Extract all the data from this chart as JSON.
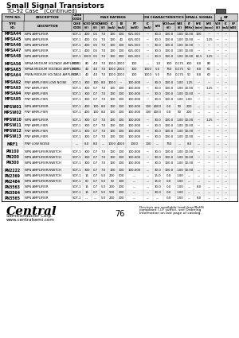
{
  "title": "Small Signal Transistors",
  "subtitle": "TO-92 Case   (Continued)",
  "page_num": "76",
  "bg_color": "#ffffff",
  "rows": [
    [
      "MPSA44",
      "NPN AMPLIFIER",
      "SOT-1",
      "400",
      "0.5",
      "7.0",
      "100",
      "100",
      "625,000",
      "---",
      "30.0",
      "100.0",
      "1.00",
      "10.00",
      "100",
      "---",
      "---",
      "---"
    ],
    [
      "MPSA45",
      "NPN AMPLIFIER",
      "SOT-1",
      "400",
      "0.5",
      "7.0",
      "100",
      "40",
      "625,000",
      "---",
      "30.0",
      "100.0",
      "1.00",
      "10.00",
      "---",
      "1.25",
      "---",
      "---"
    ],
    [
      "MPSA46",
      "NPN AMPLIFIER",
      "SOT-1",
      "400",
      "0.5",
      "7.0",
      "100",
      "100",
      "625,000",
      "---",
      "30.0",
      "100.0",
      "1.00",
      "10.00",
      "---",
      "---",
      "---",
      "---"
    ],
    [
      "MPSA47",
      "NPN AMPLIFIER",
      "SOT-1",
      "400",
      "0.5",
      "7.0",
      "100",
      "100",
      "625,000",
      "---",
      "30.0",
      "100.0",
      "1.00",
      "10.00",
      "---",
      "---",
      "---",
      "---"
    ],
    [
      "MPSA48",
      "NPN AMPLIFIER",
      "SOT-1",
      "1000",
      "0.5",
      "7.0",
      "100",
      "300",
      "625,000",
      "---",
      "30.0",
      "100.0",
      "1.00",
      "10.00",
      "62.5",
      "1.25",
      "---",
      "---"
    ],
    [
      "SEP",
      "",
      "",
      "",
      "",
      "",
      "",
      "",
      "",
      "",
      "",
      "",
      "",
      "",
      "",
      "",
      "",
      ""
    ],
    [
      "MPSA56",
      "NPNA MEDIUM VOLTAGE AMPLIFIER",
      "SOT-1",
      "80",
      "4.0",
      "7.0",
      "1000",
      "2000",
      "100",
      "---",
      "1.0",
      "300",
      "0.175",
      "300",
      "8.0",
      "80",
      "---",
      "---"
    ],
    [
      "MPSA63",
      "NPNA MEDIUM VOLTAGE AMPLIFIER",
      "SOT-1",
      "40",
      "4.0",
      "7.0",
      "1000",
      "2000",
      "100",
      "1000",
      "5.0",
      "750",
      "0.175",
      "50",
      "8.0",
      "60",
      "---",
      "---"
    ],
    [
      "MPSA64",
      "PNPA MEDIUM VOLTAGE AMPLIFIER",
      "SOT-1",
      "40",
      "4.0",
      "7.0",
      "1000",
      "2000",
      "100",
      "1000",
      "5.0",
      "750",
      "0.175",
      "50",
      "8.0",
      "60",
      "---",
      "---"
    ],
    [
      "SEP",
      "",
      "",
      "",
      "",
      "",
      "",
      "",
      "",
      "",
      "",
      "",
      "",
      "",
      "",
      "",
      "",
      ""
    ],
    [
      "MPSA92",
      "PNP AMPLIFIER LOW NOISE",
      "SOT-1",
      "300",
      "100",
      "8.0",
      "1000",
      "---",
      "100,000",
      "---",
      "30.0",
      "100.0",
      "1.00",
      "1.25",
      "---",
      "---",
      "---",
      "---"
    ],
    [
      "MPSA93",
      "PNP AMPLIFIER",
      "SOT-1",
      "300",
      "0.7",
      "7.0",
      "100",
      "100",
      "100,000",
      "---",
      "30.0",
      "100.0",
      "1.00",
      "10.00",
      "---",
      "1.25",
      "---",
      "---"
    ],
    [
      "MPSA94",
      "PNP AMPLIFIER",
      "SOT-1",
      "300",
      "0.7",
      "7.0",
      "100",
      "100",
      "100,000",
      "---",
      "30.0",
      "100.0",
      "1.00",
      "10.00",
      "---",
      "---",
      "---",
      "---"
    ],
    [
      "MPSA95",
      "PNP AMPLIFIER",
      "SOT-1",
      "300",
      "0.7",
      "7.0",
      "100",
      "100",
      "100,000",
      "---",
      "30.0",
      "100.0",
      "1.00",
      "1.00",
      "---",
      "---",
      "---",
      "---"
    ],
    [
      "SEP",
      "",
      "",
      "",
      "",
      "",
      "",
      "",
      "",
      "",
      "",
      "",
      "",
      "",
      "",
      "",
      "",
      ""
    ],
    [
      "MPSW01",
      "NPN AMPLIFIER",
      "SOT-1",
      "400",
      "100",
      "8.0",
      "100",
      "100",
      "100,000",
      "100",
      "4000",
      "0.0",
      "90",
      "200",
      "---",
      "---",
      "---",
      "---"
    ],
    [
      "MPSW02",
      "PNP AMPLIFIER",
      "SOT-1",
      "400",
      "100",
      "8.0",
      "100",
      "100",
      "100,000",
      "100",
      "4000",
      "0.0",
      "90",
      "200",
      "---",
      "---",
      "---",
      "---"
    ],
    [
      "SEP",
      "",
      "",
      "",
      "",
      "",
      "",
      "",
      "",
      "",
      "",
      "",
      "",
      "",
      "",
      "",
      "",
      ""
    ],
    [
      "MPSW10",
      "NPN AMPLIFIER",
      "SOT-1",
      "300",
      "0.7",
      "7.0",
      "100",
      "100",
      "100,000",
      "---",
      "30.0",
      "100.0",
      "1.00",
      "10.00",
      "---",
      "1.25",
      "---",
      "---"
    ],
    [
      "MPSW11",
      "PNP AMPLIFIER",
      "SOT-1",
      "300",
      "0.7",
      "7.0",
      "100",
      "100",
      "100,000",
      "---",
      "30.0",
      "100.0",
      "1.00",
      "10.00",
      "---",
      "---",
      "---",
      "---"
    ],
    [
      "MPSW12",
      "PNP AMPLIFIER",
      "SOT-1",
      "300",
      "0.7",
      "7.0",
      "100",
      "100",
      "100,000",
      "---",
      "30.0",
      "100.0",
      "1.00",
      "10.00",
      "---",
      "---",
      "---",
      "---"
    ],
    [
      "MPSW13",
      "PNP AMPLIFIER",
      "SOT-1",
      "300",
      "0.7",
      "7.0",
      "100",
      "100",
      "100,000",
      "---",
      "30.0",
      "100.0",
      "1.00",
      "10.00",
      "---",
      "---",
      "---",
      "---"
    ],
    [
      "SEP",
      "",
      "",
      "",
      "",
      "",
      "",
      "",
      "",
      "",
      "",
      "",
      "",
      "",
      "",
      "",
      "",
      ""
    ],
    [
      "MRF1",
      "PNP LOW NOISE",
      "---",
      "8.0",
      "8.0",
      "---",
      "1000",
      "4000",
      "1000",
      "100",
      "---",
      "750",
      "---",
      "8.0",
      "---",
      "---",
      "---",
      "---"
    ],
    [
      "SEP",
      "",
      "",
      "",
      "",
      "",
      "",
      "",
      "",
      "",
      "",
      "",
      "",
      "",
      "",
      "",
      "",
      ""
    ],
    [
      "PN100",
      "NPN AMPLIFIER/SWITCH",
      "SOT-1",
      "300",
      "0.7",
      "7.0",
      "100",
      "100",
      "100,000",
      "---",
      "30.0",
      "100.0",
      "1.00",
      "10.00",
      "---",
      "---",
      "---",
      "---"
    ],
    [
      "PN200",
      "NPN AMPLIFIER/SWITCH",
      "SOT-1",
      "300",
      "0.7",
      "7.0",
      "100",
      "100",
      "100,000",
      "---",
      "30.0",
      "100.0",
      "1.00",
      "10.00",
      "---",
      "---",
      "---",
      "---"
    ],
    [
      "PN300",
      "NPN AMPLIFIER/SWITCH",
      "SOT-1",
      "300",
      "0.7",
      "7.0",
      "100",
      "100",
      "100,000",
      "---",
      "30.0",
      "100.0",
      "1.00",
      "10.00",
      "---",
      "---",
      "---",
      "---"
    ],
    [
      "SEP",
      "",
      "",
      "",
      "",
      "",
      "",
      "",
      "",
      "",
      "",
      "",
      "",
      "",
      "",
      "",
      "",
      ""
    ],
    [
      "PN2222",
      "NPN AMPLIFIER/SWITCH",
      "SOT-1",
      "300",
      "0.7",
      "7.0",
      "100",
      "100",
      "100,000",
      "---",
      "30.0",
      "100.0",
      "1.00",
      "10.00",
      "---",
      "---",
      "---",
      "---"
    ],
    [
      "PN2369",
      "NPN AMPLIFIER/SWITCH",
      "SOT-1",
      "15",
      "0.7",
      "5.0",
      "200",
      "500",
      "---",
      "---",
      "15.0",
      "0.0",
      "1.00",
      "---",
      "---",
      "---",
      "---",
      "---"
    ],
    [
      "PN2484",
      "NPN AMPLIFIER/SWITCH",
      "SOT-1",
      "60",
      "0.7",
      "5.0",
      "50",
      "100",
      "---",
      "---",
      "15.0",
      "0.0",
      "1.00",
      "---",
      "---",
      "---",
      "---",
      "---"
    ],
    [
      "PN3563",
      "NPN AMPLIFIER",
      "SOT-1",
      "15",
      "0.7",
      "5.0",
      "200",
      "200",
      "---",
      "---",
      "30.0",
      "0.0",
      "1.00",
      "---",
      "8.0",
      "---",
      "---",
      "---"
    ],
    [
      "PN3564",
      "NPN AMPLIFIER",
      "SOT-1",
      "15",
      "0.7",
      "5.0",
      "500",
      "200",
      "---",
      "---",
      "30.0",
      "0.0",
      "1.00",
      "---",
      "---",
      "---",
      "---",
      "---"
    ],
    [
      "PN3565",
      "NPN AMPLIFIER",
      "SOT-1",
      "---",
      "---",
      "5.0",
      "200",
      "200",
      "---",
      "---",
      "---",
      "0.0",
      "1.00",
      "---",
      "8.0",
      "---",
      "---",
      "---"
    ]
  ],
  "footnote_line1": "Devices are available lead-free/RoHS",
  "footnote_line2": "compliant (-LF suffix), see Ordering",
  "footnote_line3": "Information on last page of catalog.",
  "footer_company": "Central",
  "footer_sub": "Semiconductor Corp.",
  "footer_web": "www.centralsemi.com"
}
